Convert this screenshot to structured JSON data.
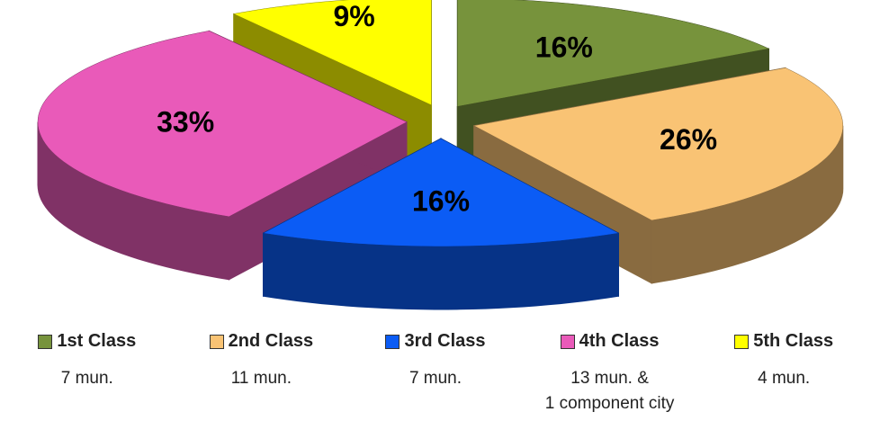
{
  "chart_data": {
    "type": "pie",
    "categories": [
      "1st Class",
      "2nd Class",
      "3rd Class",
      "4th Class",
      "5th Class"
    ],
    "values": [
      16,
      26,
      16,
      33,
      9
    ],
    "value_labels": [
      "16%",
      "26%",
      "16%",
      "33%",
      "9%"
    ],
    "notes": [
      "7 mun.",
      "11 mun.",
      "7 mun.",
      "13 mun. &\n1 component city",
      "4 mun."
    ],
    "colors": [
      "#77933c",
      "#f9c374",
      "#0b5cf5",
      "#e95ab9",
      "#ffff00"
    ],
    "legend": "bottom"
  }
}
